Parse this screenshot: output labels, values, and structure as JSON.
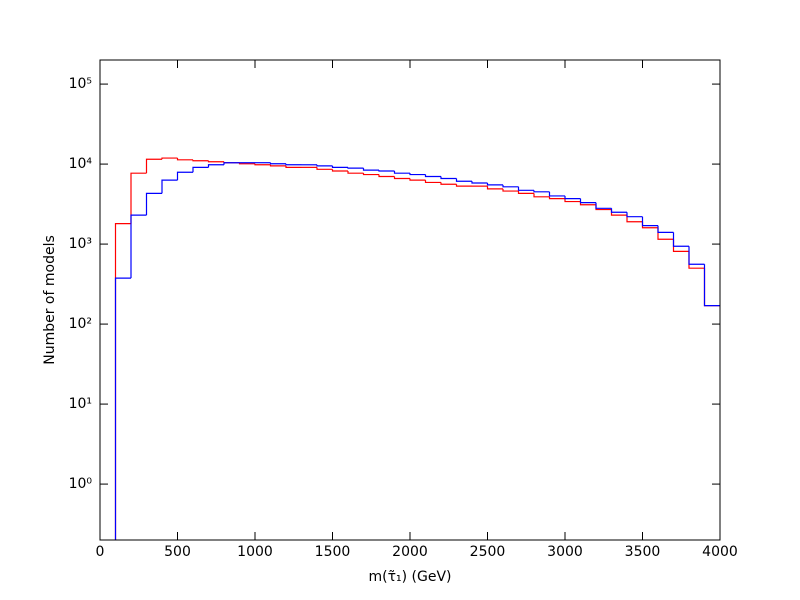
{
  "chart_data": {
    "type": "histogram",
    "xlabel": "m(τ̃₁) (GeV)",
    "ylabel": "Number of models",
    "bins": [
      100,
      200,
      300,
      400,
      500,
      600,
      700,
      800,
      900,
      1000,
      1100,
      1200,
      1300,
      1400,
      1500,
      1600,
      1700,
      1800,
      1900,
      2000,
      2100,
      2200,
      2300,
      2400,
      2500,
      2600,
      2700,
      2800,
      2900,
      3000,
      3100,
      3200,
      3300,
      3400,
      3500,
      3600,
      3700,
      3800,
      3900,
      4000
    ],
    "series": [
      {
        "color": "#ff0000",
        "values": [
          1800,
          7700,
          11500,
          11900,
          11300,
          11000,
          10700,
          10400,
          10100,
          9800,
          9500,
          9100,
          9100,
          8600,
          8200,
          7700,
          7400,
          7000,
          6600,
          6300,
          5900,
          5600,
          5300,
          5300,
          4900,
          4600,
          4300,
          3900,
          3700,
          3400,
          3100,
          2700,
          2300,
          1900,
          1600,
          1150,
          810,
          500,
          170
        ]
      },
      {
        "color": "#0000ff",
        "values": [
          375,
          2300,
          4300,
          6300,
          7900,
          9100,
          9800,
          10400,
          10400,
          10400,
          10100,
          9800,
          9800,
          9500,
          9100,
          8900,
          8400,
          8200,
          7700,
          7400,
          7000,
          6600,
          6100,
          5800,
          5500,
          5200,
          4700,
          4500,
          4000,
          3700,
          3300,
          2800,
          2500,
          2200,
          1700,
          1400,
          940,
          560,
          170
        ]
      }
    ],
    "xlim": [
      0,
      4000
    ],
    "xticks": [
      0,
      500,
      1000,
      1500,
      2000,
      2500,
      3000,
      3500,
      4000
    ],
    "ylim": [
      0.2,
      200000
    ],
    "log_y": true,
    "yticks": [
      {
        "value": 1,
        "label": "10⁰"
      },
      {
        "value": 10,
        "label": "10¹"
      },
      {
        "value": 100,
        "label": "10²"
      },
      {
        "value": 1000,
        "label": "10³"
      },
      {
        "value": 10000,
        "label": "10⁴"
      },
      {
        "value": 100000,
        "label": "10⁵"
      }
    ]
  }
}
